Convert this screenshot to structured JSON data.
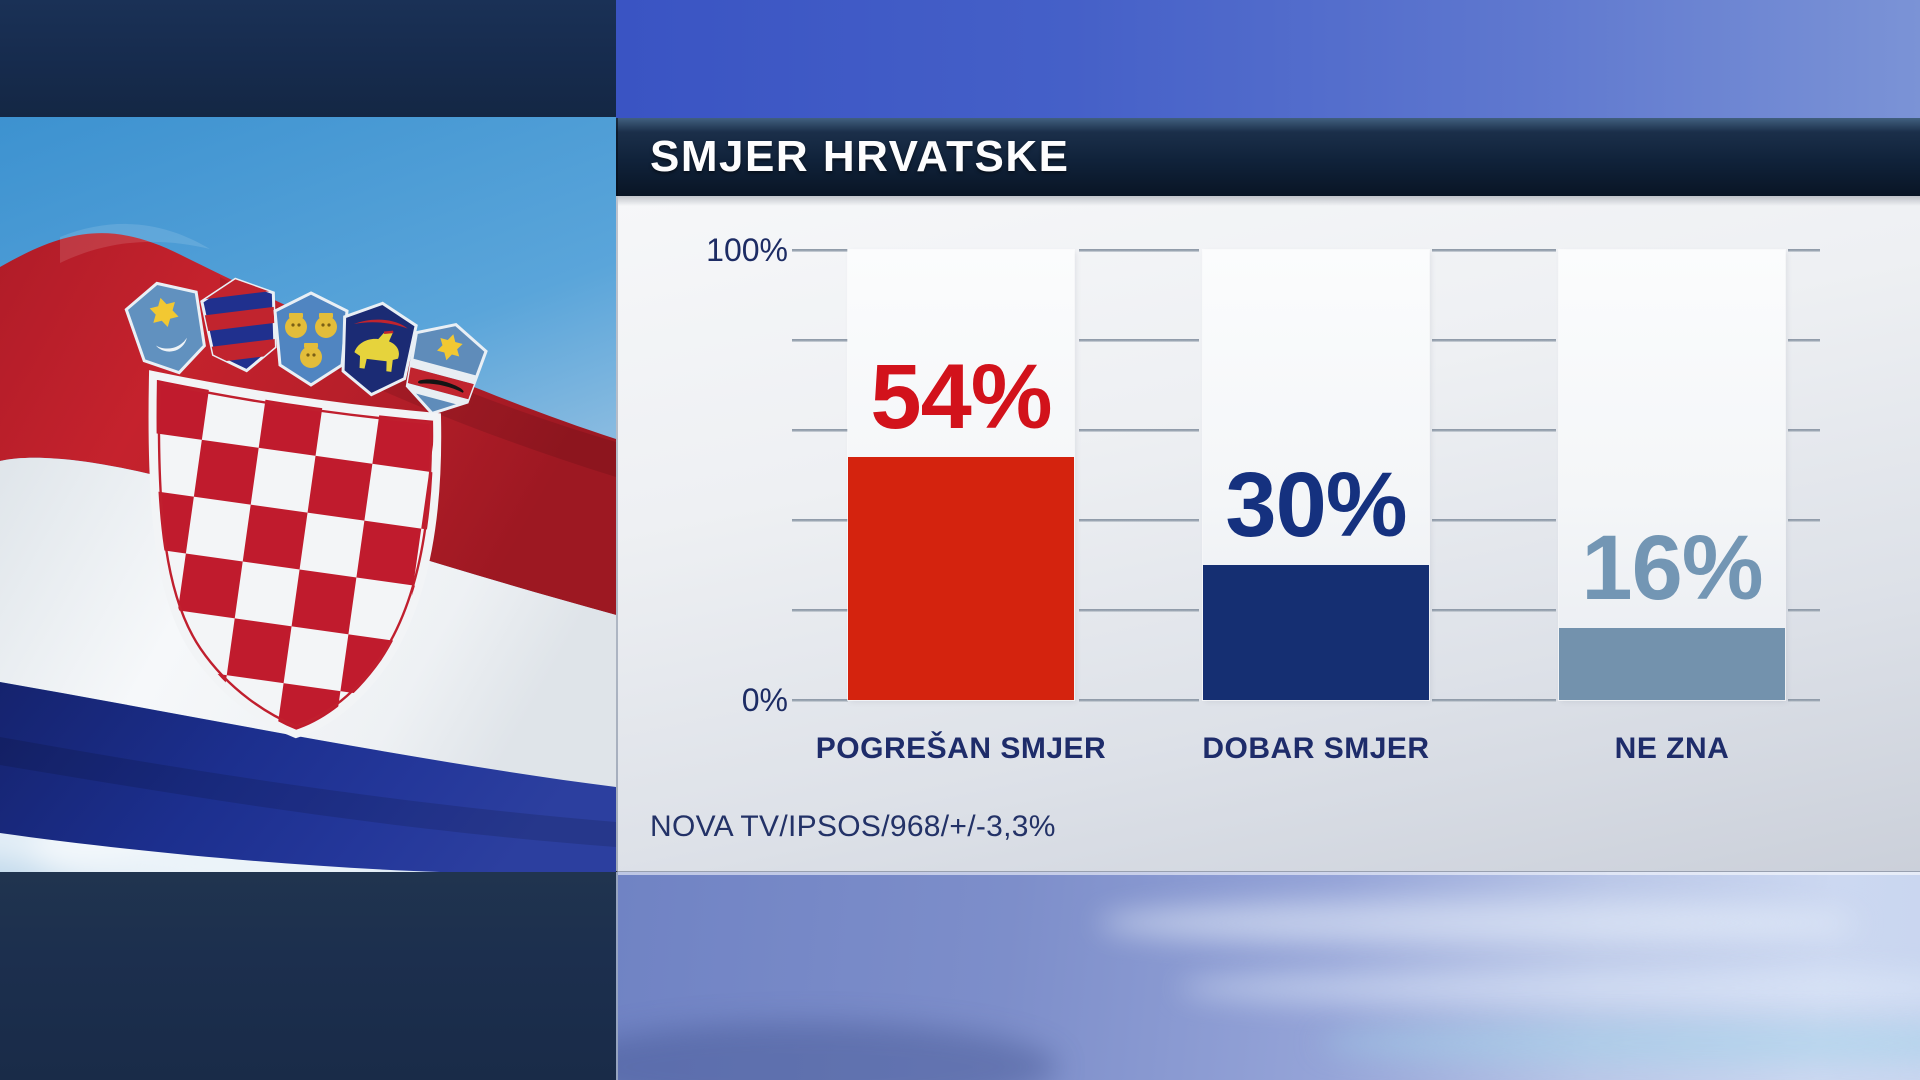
{
  "header": {
    "title": "SMJER HRVATSKE"
  },
  "chart": {
    "axis": {
      "max_label": "100%",
      "min_label": "0%",
      "max": 100,
      "min": 0,
      "tick_step": 20
    },
    "bars": [
      {
        "label": "POGREŠAN SMJER",
        "value": 54,
        "value_label": "54%",
        "bar_color": "#d4230e",
        "label_color": "#d2121b"
      },
      {
        "label": "DOBAR SMJER",
        "value": 30,
        "value_label": "30%",
        "bar_color": "#152f72",
        "label_color": "#15317f"
      },
      {
        "label": "NE ZNA",
        "value": 16,
        "value_label": "16%",
        "bar_color": "#7392ad",
        "label_color": "#7396b4"
      }
    ],
    "source": "NOVA TV/IPSOS/968/+/-3,3%"
  },
  "chart_data": {
    "type": "bar",
    "title": "SMJER HRVATSKE",
    "categories": [
      "POGREŠAN SMJER",
      "DOBAR SMJER",
      "NE ZNA"
    ],
    "values": [
      54,
      30,
      16
    ],
    "value_labels": [
      "54%",
      "30%",
      "16%"
    ],
    "xlabel": "",
    "ylabel": "",
    "ylim": [
      0,
      100
    ],
    "ytick_step": 20,
    "ytick_labels_shown": [
      "100%",
      "0%"
    ],
    "grid": "horizontal",
    "legend": "none",
    "bar_colors": [
      "#d4230e",
      "#152f72",
      "#7392ad"
    ],
    "source": "NOVA TV/IPSOS/968/+/-3,3%"
  },
  "flag": {
    "name": "croatian-flag"
  },
  "colors": {
    "accent_red": "#d4230e",
    "accent_navy": "#152f72",
    "accent_steel": "#7392ad",
    "text_navy": "#1e2c6a",
    "header_bg": "#0f2138",
    "top_strip_blue": "#3a54c3"
  }
}
